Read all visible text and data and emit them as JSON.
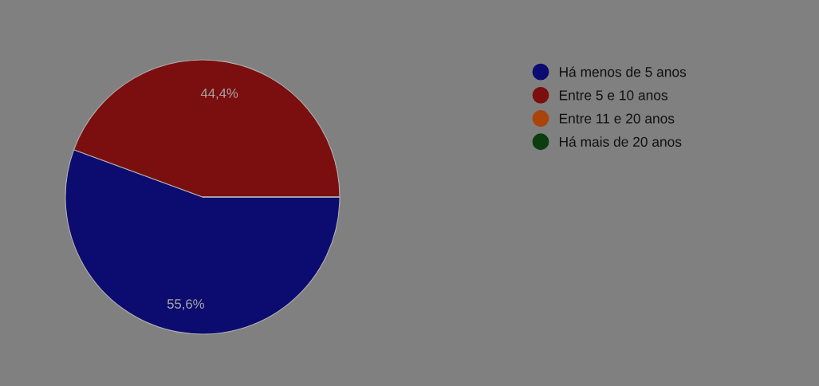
{
  "chart_data": {
    "type": "pie",
    "categories": [
      "Há menos de 5 anos",
      "Entre 5 e 10 anos",
      "Entre 11 e 20 anos",
      "Há mais de 20 anos"
    ],
    "values": [
      55.6,
      44.4,
      0,
      0
    ],
    "colors": [
      "#0c0c70",
      "#7b0f0f",
      "#a9440b",
      "#0b3d10"
    ],
    "value_labels": [
      "55,6%",
      "44,4%",
      null,
      null
    ],
    "legend": "top right"
  }
}
